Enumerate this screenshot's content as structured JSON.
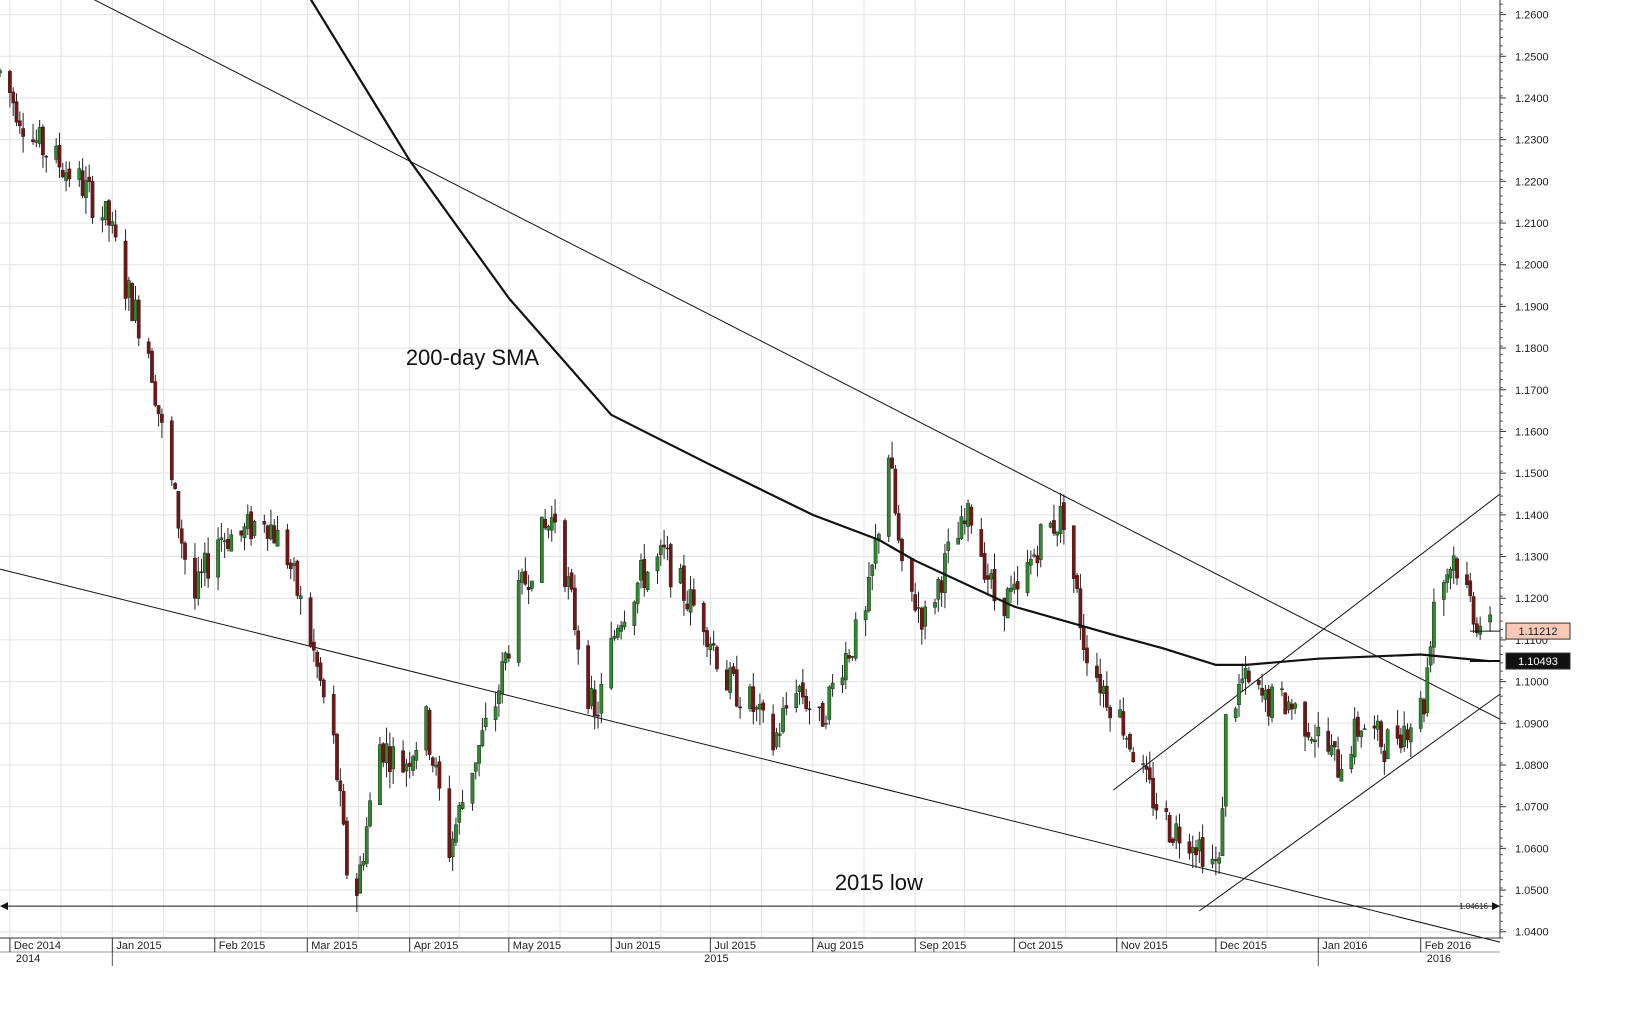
{
  "chart_data": {
    "type": "candlestick",
    "title": "",
    "xlabel": "",
    "ylabel": "",
    "ylim": [
      1.0385,
      1.2635
    ],
    "y_ticks": [
      1.26,
      1.25,
      1.24,
      1.23,
      1.22,
      1.21,
      1.2,
      1.19,
      1.18,
      1.17,
      1.16,
      1.15,
      1.14,
      1.13,
      1.12,
      1.11,
      1.1,
      1.09,
      1.08,
      1.07,
      1.06,
      1.05,
      1.04
    ],
    "y_tick_labels": [
      "1.2600",
      "1.2500",
      "1.2400",
      "1.2300",
      "1.2200",
      "1.2100",
      "1.2000",
      "1.1900",
      "1.1800",
      "1.1700",
      "1.1600",
      "1.1500",
      "1.1400",
      "1.1300",
      "1.1200",
      "1.1100",
      "1.1000",
      "1.0900",
      "1.0800",
      "1.0700",
      "1.0600",
      "1.0500",
      "1.0400"
    ],
    "month_labels": [
      {
        "label": "Dec 2014",
        "date": "2014-12-01"
      },
      {
        "label": "Jan 2015",
        "date": "2015-01-01"
      },
      {
        "label": "Feb 2015",
        "date": "2015-02-01"
      },
      {
        "label": "Mar 2015",
        "date": "2015-03-01"
      },
      {
        "label": "Apr 2015",
        "date": "2015-04-01"
      },
      {
        "label": "May 2015",
        "date": "2015-05-01"
      },
      {
        "label": "Jun 2015",
        "date": "2015-06-01"
      },
      {
        "label": "Jul 2015",
        "date": "2015-07-01"
      },
      {
        "label": "Aug 2015",
        "date": "2015-08-01"
      },
      {
        "label": "Sep 2015",
        "date": "2015-09-01"
      },
      {
        "label": "Oct 2015",
        "date": "2015-10-01"
      },
      {
        "label": "Nov 2015",
        "date": "2015-11-01"
      },
      {
        "label": "Dec 2015",
        "date": "2015-12-01"
      },
      {
        "label": "Jan 2016",
        "date": "2016-01-01"
      },
      {
        "label": "Feb 2016",
        "date": "2016-02-01"
      }
    ],
    "year_labels": [
      {
        "label": "2014",
        "date": "2014-12-01"
      },
      {
        "label": "2015",
        "date": "2015-07-01"
      },
      {
        "label": "2016",
        "date": "2016-02-01"
      }
    ],
    "x_range": [
      "2014-11-28",
      "2016-02-25"
    ],
    "price_path": [
      [
        "2014-11-28",
        1.246
      ],
      [
        "2014-12-08",
        1.23
      ],
      [
        "2014-12-15",
        1.225
      ],
      [
        "2014-12-22",
        1.22
      ],
      [
        "2014-12-31",
        1.21
      ],
      [
        "2015-01-05",
        1.195
      ],
      [
        "2015-01-12",
        1.18
      ],
      [
        "2015-01-16",
        1.16
      ],
      [
        "2015-01-23",
        1.13
      ],
      [
        "2015-01-26",
        1.12
      ],
      [
        "2015-02-02",
        1.135
      ],
      [
        "2015-02-09",
        1.135
      ],
      [
        "2015-02-16",
        1.14
      ],
      [
        "2015-02-23",
        1.13
      ],
      [
        "2015-03-02",
        1.11
      ],
      [
        "2015-03-09",
        1.085
      ],
      [
        "2015-03-13",
        1.055
      ],
      [
        "2015-03-16",
        1.05
      ],
      [
        "2015-03-23",
        1.085
      ],
      [
        "2015-03-30",
        1.08
      ],
      [
        "2015-04-06",
        1.09
      ],
      [
        "2015-04-13",
        1.06
      ],
      [
        "2015-04-20",
        1.08
      ],
      [
        "2015-04-27",
        1.095
      ],
      [
        "2015-05-04",
        1.12
      ],
      [
        "2015-05-11",
        1.135
      ],
      [
        "2015-05-15",
        1.14
      ],
      [
        "2015-05-22",
        1.11
      ],
      [
        "2015-05-27",
        1.09
      ],
      [
        "2015-06-03",
        1.115
      ],
      [
        "2015-06-10",
        1.125
      ],
      [
        "2015-06-17",
        1.13
      ],
      [
        "2015-06-24",
        1.12
      ],
      [
        "2015-06-29",
        1.115
      ],
      [
        "2015-07-06",
        1.1
      ],
      [
        "2015-07-13",
        1.095
      ],
      [
        "2015-07-20",
        1.085
      ],
      [
        "2015-07-27",
        1.1
      ],
      [
        "2015-08-03",
        1.09
      ],
      [
        "2015-08-10",
        1.105
      ],
      [
        "2015-08-17",
        1.115
      ],
      [
        "2015-08-24",
        1.155
      ],
      [
        "2015-08-28",
        1.125
      ],
      [
        "2015-09-04",
        1.115
      ],
      [
        "2015-09-11",
        1.13
      ],
      [
        "2015-09-18",
        1.14
      ],
      [
        "2015-09-25",
        1.12
      ],
      [
        "2015-10-02",
        1.12
      ],
      [
        "2015-10-09",
        1.135
      ],
      [
        "2015-10-16",
        1.14
      ],
      [
        "2015-10-22",
        1.11
      ],
      [
        "2015-10-27",
        1.1
      ],
      [
        "2015-11-03",
        1.09
      ],
      [
        "2015-11-10",
        1.075
      ],
      [
        "2015-11-17",
        1.065
      ],
      [
        "2015-11-24",
        1.063
      ],
      [
        "2015-12-02",
        1.055
      ],
      [
        "2015-12-04",
        1.09
      ],
      [
        "2015-12-09",
        1.1
      ],
      [
        "2015-12-16",
        1.095
      ],
      [
        "2015-12-23",
        1.095
      ],
      [
        "2015-12-31",
        1.088
      ],
      [
        "2016-01-07",
        1.08
      ],
      [
        "2016-01-14",
        1.09
      ],
      [
        "2016-01-21",
        1.085
      ],
      [
        "2016-01-28",
        1.09
      ],
      [
        "2016-02-02",
        1.095
      ],
      [
        "2016-02-05",
        1.12
      ],
      [
        "2016-02-11",
        1.13
      ],
      [
        "2016-02-18",
        1.115
      ],
      [
        "2016-02-22",
        1.1121
      ]
    ],
    "sma_200": {
      "name": "200-day SMA",
      "points": [
        [
          "2015-03-01",
          1.265
        ],
        [
          "2015-04-01",
          1.225
        ],
        [
          "2015-05-01",
          1.192
        ],
        [
          "2015-06-01",
          1.164
        ],
        [
          "2015-07-01",
          1.152
        ],
        [
          "2015-08-01",
          1.14
        ],
        [
          "2015-08-21",
          1.134
        ],
        [
          "2015-09-01",
          1.129
        ],
        [
          "2015-10-01",
          1.118
        ],
        [
          "2015-11-01",
          1.111
        ],
        [
          "2015-11-15",
          1.108
        ],
        [
          "2015-12-01",
          1.104
        ],
        [
          "2015-12-10",
          1.104
        ],
        [
          "2016-01-01",
          1.1055
        ],
        [
          "2016-02-01",
          1.1065
        ],
        [
          "2016-02-22",
          1.1049
        ]
      ]
    },
    "trendlines": [
      {
        "name": "upper-falling-trendline",
        "from": [
          "2014-12-23",
          1.265
        ],
        "to": [
          "2016-02-25",
          1.091
        ]
      },
      {
        "name": "lower-falling-trendline",
        "from": [
          "2014-11-28",
          1.127
        ],
        "to": [
          "2016-02-25",
          1.0375
        ]
      },
      {
        "name": "lower-rising-channel-line",
        "from": [
          "2015-11-26",
          1.045
        ],
        "to": [
          "2016-02-25",
          1.097
        ]
      },
      {
        "name": "upper-rising-channel-line",
        "from": [
          "2015-10-31",
          1.074
        ],
        "to": [
          "2016-02-25",
          1.145
        ]
      }
    ],
    "horizontal_line": {
      "value": 1.04616,
      "label": "1.04616"
    },
    "annotations": [
      {
        "text": "200-day SMA",
        "date": "2015-04-20",
        "value": 1.176
      },
      {
        "text": "2015 low",
        "date": "2015-08-21",
        "value": 1.05
      }
    ],
    "price_tags": [
      {
        "label": "1.11212",
        "value": 1.11212,
        "style": "last-price"
      },
      {
        "label": "1.10493",
        "value": 1.10493,
        "style": "sma"
      }
    ],
    "colors": {
      "bull_candle": "#2d8a2d",
      "bear_candle": "#7a1414",
      "grid": "#e3e3e3",
      "line": "#111111",
      "last_price_tag_bg": "#f6c9b8"
    }
  }
}
